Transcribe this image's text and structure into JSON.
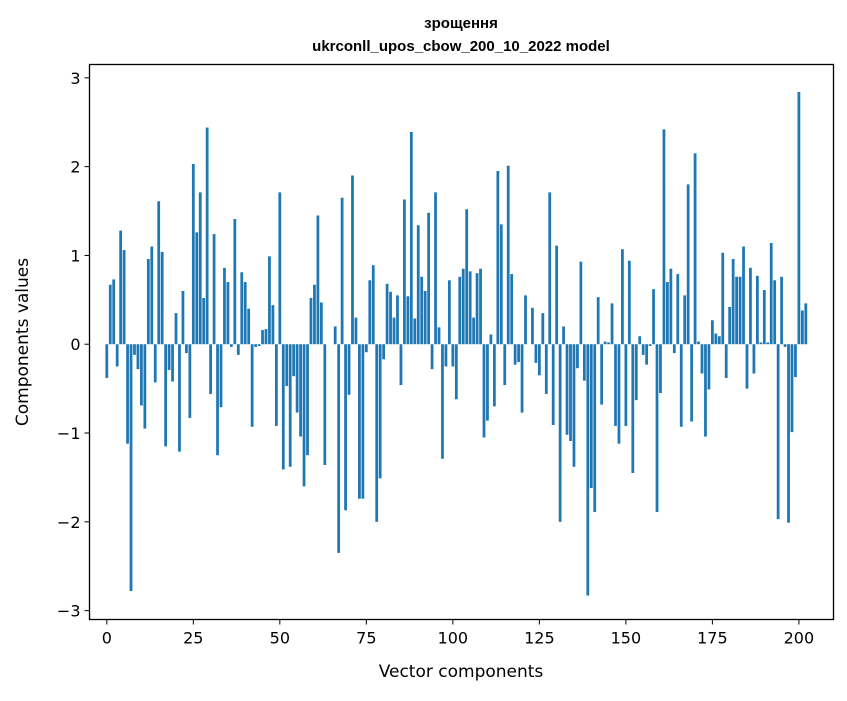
{
  "chart_data": {
    "type": "bar",
    "title": "зрощення",
    "subtitle": "ukrconll_upos_cbow_200_10_2022 model",
    "xlabel": "Vector components",
    "ylabel": "Components values",
    "xlim": [
      -5,
      210
    ],
    "ylim": [
      -3.1,
      3.15
    ],
    "x_ticks": [
      0,
      25,
      50,
      75,
      100,
      125,
      150,
      175,
      200
    ],
    "y_ticks": [
      -3,
      -2,
      -1,
      0,
      1,
      2,
      3
    ],
    "y_tick_labels": [
      "−3",
      "−2",
      "−1",
      "0",
      "1",
      "2",
      "3"
    ],
    "bar_color": "#1f77b4",
    "grid": false,
    "legend": "none",
    "values": [
      -0.38,
      0.67,
      0.73,
      -0.25,
      1.28,
      1.06,
      -1.12,
      -2.78,
      -0.12,
      -0.28,
      -0.69,
      -0.95,
      0.96,
      1.1,
      -0.43,
      1.61,
      1.04,
      -1.15,
      -0.29,
      -0.42,
      0.35,
      -1.21,
      0.6,
      -0.1,
      -0.83,
      2.03,
      1.26,
      1.71,
      0.52,
      2.44,
      -0.56,
      1.24,
      -1.25,
      -0.71,
      0.86,
      0.7,
      -0.03,
      1.41,
      -0.12,
      0.81,
      0.7,
      0.4,
      -0.93,
      -0.03,
      -0.02,
      0.16,
      0.17,
      0.99,
      0.44,
      -0.92,
      1.71,
      -1.41,
      -0.47,
      -1.38,
      -0.36,
      -0.77,
      -1.04,
      -1.6,
      -1.25,
      0.52,
      0.67,
      1.45,
      0.47,
      -1.36,
      0.0,
      0.0,
      0.2,
      -2.35,
      1.65,
      -1.87,
      -0.57,
      1.9,
      0.3,
      -1.74,
      -1.74,
      -0.09,
      0.72,
      0.89,
      -2.0,
      -1.51,
      -0.17,
      0.68,
      0.59,
      0.3,
      0.55,
      -0.46,
      1.63,
      0.54,
      2.39,
      0.29,
      1.34,
      0.76,
      0.6,
      1.48,
      -0.28,
      1.71,
      0.19,
      -1.29,
      -0.25,
      0.72,
      -0.25,
      -0.62,
      0.76,
      0.85,
      1.52,
      0.82,
      0.3,
      0.8,
      0.85,
      -1.05,
      -0.86,
      0.11,
      -0.7,
      1.95,
      1.35,
      -0.46,
      2.01,
      0.79,
      -0.23,
      -0.2,
      -0.77,
      0.55,
      0.0,
      0.41,
      -0.21,
      -0.35,
      0.35,
      -0.56,
      1.71,
      -0.91,
      1.11,
      -2.0,
      0.2,
      -1.02,
      -1.09,
      -1.38,
      -0.27,
      0.93,
      -0.41,
      -2.83,
      -1.62,
      -1.89,
      0.53,
      -0.68,
      0.03,
      0.02,
      0.46,
      -0.92,
      -1.12,
      1.07,
      -0.92,
      0.94,
      -1.45,
      -0.63,
      0.09,
      -0.12,
      -0.23,
      -0.02,
      0.62,
      -1.89,
      -0.55,
      2.42,
      0.7,
      0.85,
      -0.1,
      0.79,
      -0.93,
      0.55,
      1.8,
      -0.87,
      2.15,
      0.03,
      -0.33,
      -1.04,
      -0.51,
      0.27,
      0.12,
      0.09,
      1.03,
      -0.38,
      0.42,
      0.96,
      0.76,
      0.76,
      1.1,
      -0.5,
      0.86,
      -0.33,
      0.77,
      0.02,
      0.61,
      0.02,
      1.14,
      0.72,
      -1.97,
      0.76,
      -0.03,
      -2.01,
      -0.99,
      -0.37,
      2.84,
      0.38,
      0.46
    ]
  }
}
